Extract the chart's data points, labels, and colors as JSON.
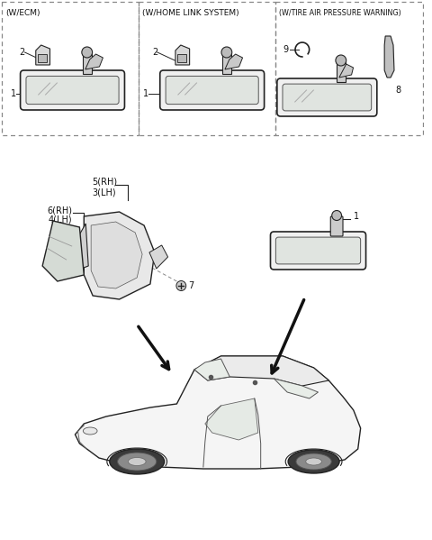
{
  "bg_color": "#ffffff",
  "panel1_label": "(W/ECM)",
  "panel2_label": "(W/HOME LINK SYSTEM)",
  "panel3_label": "(W/TIRE AIR PRESSURE WARNING)",
  "line_color": "#222222",
  "text_color": "#111111",
  "dash_color": "#777777",
  "font_size": 6.5
}
